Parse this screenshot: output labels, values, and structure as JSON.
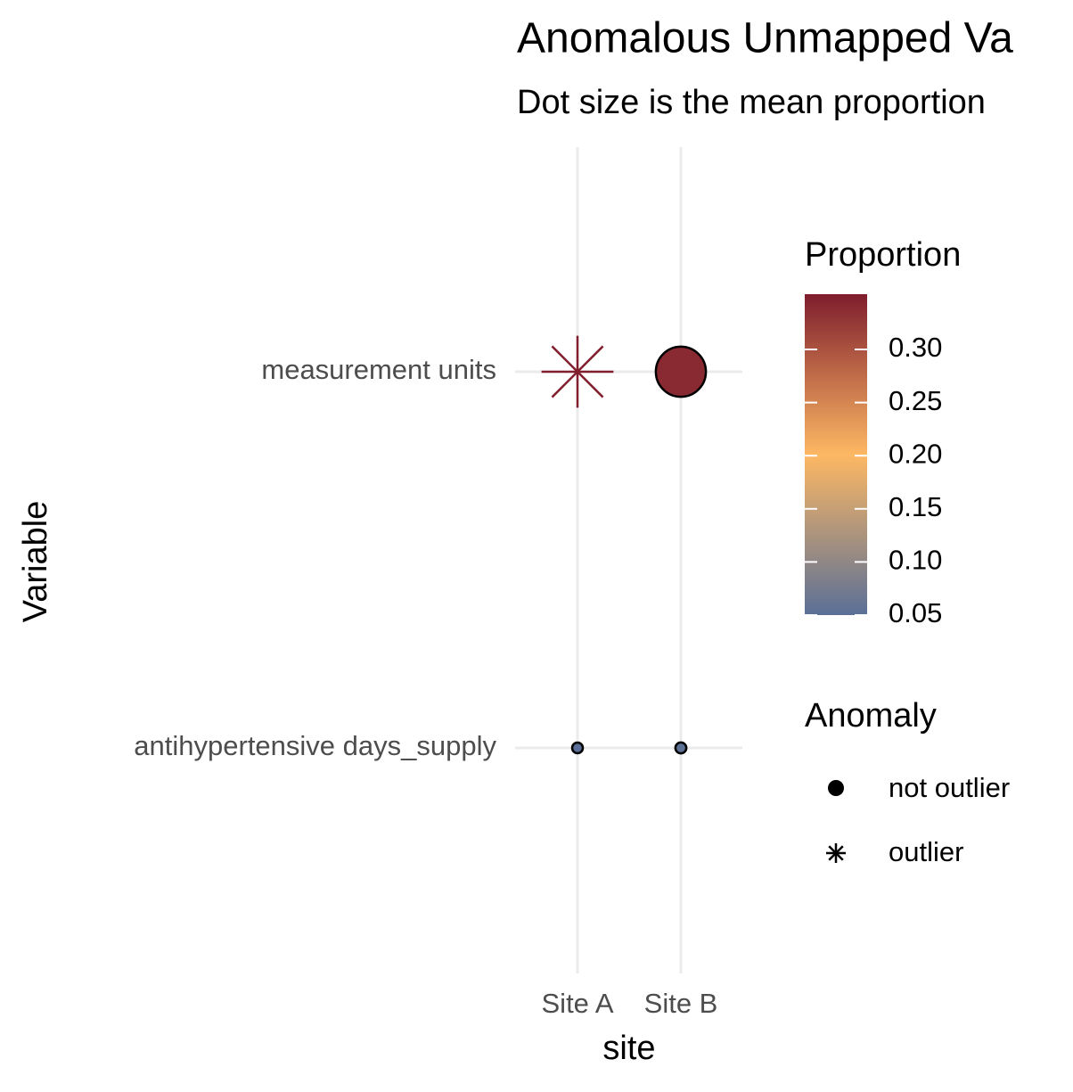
{
  "chart_data": {
    "type": "dot",
    "title": "Anomalous Unmapped Va",
    "subtitle": "Dot size is the mean proportion",
    "x_label": "site",
    "y_label": "Variable",
    "categories": [
      "Site A",
      "Site B"
    ],
    "series": [
      {
        "name": "antihypertensive days_supply",
        "values": [
          0.05,
          0.052
        ],
        "anomaly": [
          "not outlier",
          "not outlier"
        ]
      },
      {
        "name": "measurement units",
        "values": [
          0.35,
          0.34
        ],
        "anomaly": [
          "outlier",
          "not outlier"
        ]
      }
    ],
    "grid": true,
    "color_legend": {
      "title": "Proportion",
      "lim": [
        0.05,
        0.352
      ],
      "ticks": [
        0.05,
        {
          "value": 0.1,
          "label": "0.10"
        },
        0.15,
        {
          "value": 0.2,
          "label": "0.20"
        },
        0.25,
        {
          "value": 0.3,
          "label": "0.30"
        }
      ],
      "colors": [
        "#5a6f97",
        "#fdb863",
        "#7f1d2d"
      ]
    },
    "shape_legend": {
      "title": "Anomaly",
      "labels": [
        "not outlier",
        "outlier"
      ]
    }
  }
}
